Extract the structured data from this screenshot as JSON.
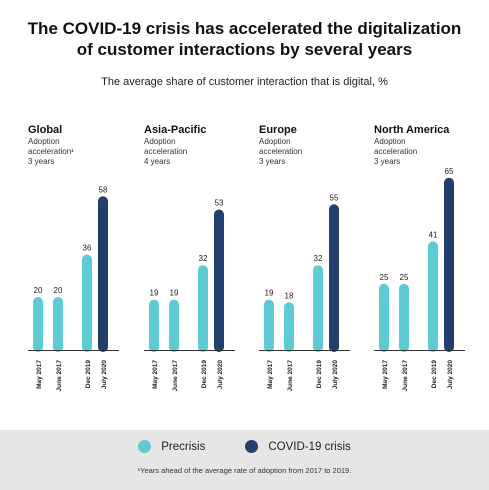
{
  "title_line1": "The COVID-19 crisis has accelerated the digitalization",
  "title_line2": "of customer interactions by several years",
  "subtitle": "The average share of customer interaction that is digital, %",
  "legend": {
    "precrisis": "Precrisis",
    "covid": "COVID-19 crisis"
  },
  "footnote": "¹Years ahead of the average rate of adoption from 2017 to 2019.",
  "colors": {
    "precrisis": "#5ecbd4",
    "covid": "#233f6b",
    "axis": "#333333"
  },
  "chart_data": {
    "type": "bar",
    "categories": [
      "May 2017",
      "June 2017",
      "Dec 2019",
      "July 2020"
    ],
    "ylim": [
      0,
      70
    ],
    "panels": [
      {
        "region": "Global",
        "adoption_label": "Adoption",
        "adoption_label2": "acceleration¹",
        "years": "3 years",
        "values": [
          20,
          20,
          36,
          58
        ]
      },
      {
        "region": "Asia-Pacific",
        "adoption_label": "Adoption",
        "adoption_label2": "acceleration",
        "years": "4 years",
        "values": [
          19,
          19,
          32,
          53
        ]
      },
      {
        "region": "Europe",
        "adoption_label": "Adoption",
        "adoption_label2": "acceleration",
        "years": "3 years",
        "values": [
          19,
          18,
          32,
          55
        ]
      },
      {
        "region": "North America",
        "adoption_label": "Adoption",
        "adoption_label2": "acceleration",
        "years": "3 years",
        "values": [
          25,
          25,
          41,
          65
        ]
      }
    ],
    "series": [
      {
        "name": "Precrisis",
        "points": [
          0,
          1,
          2
        ]
      },
      {
        "name": "COVID-19 crisis",
        "points": [
          3
        ]
      }
    ]
  }
}
